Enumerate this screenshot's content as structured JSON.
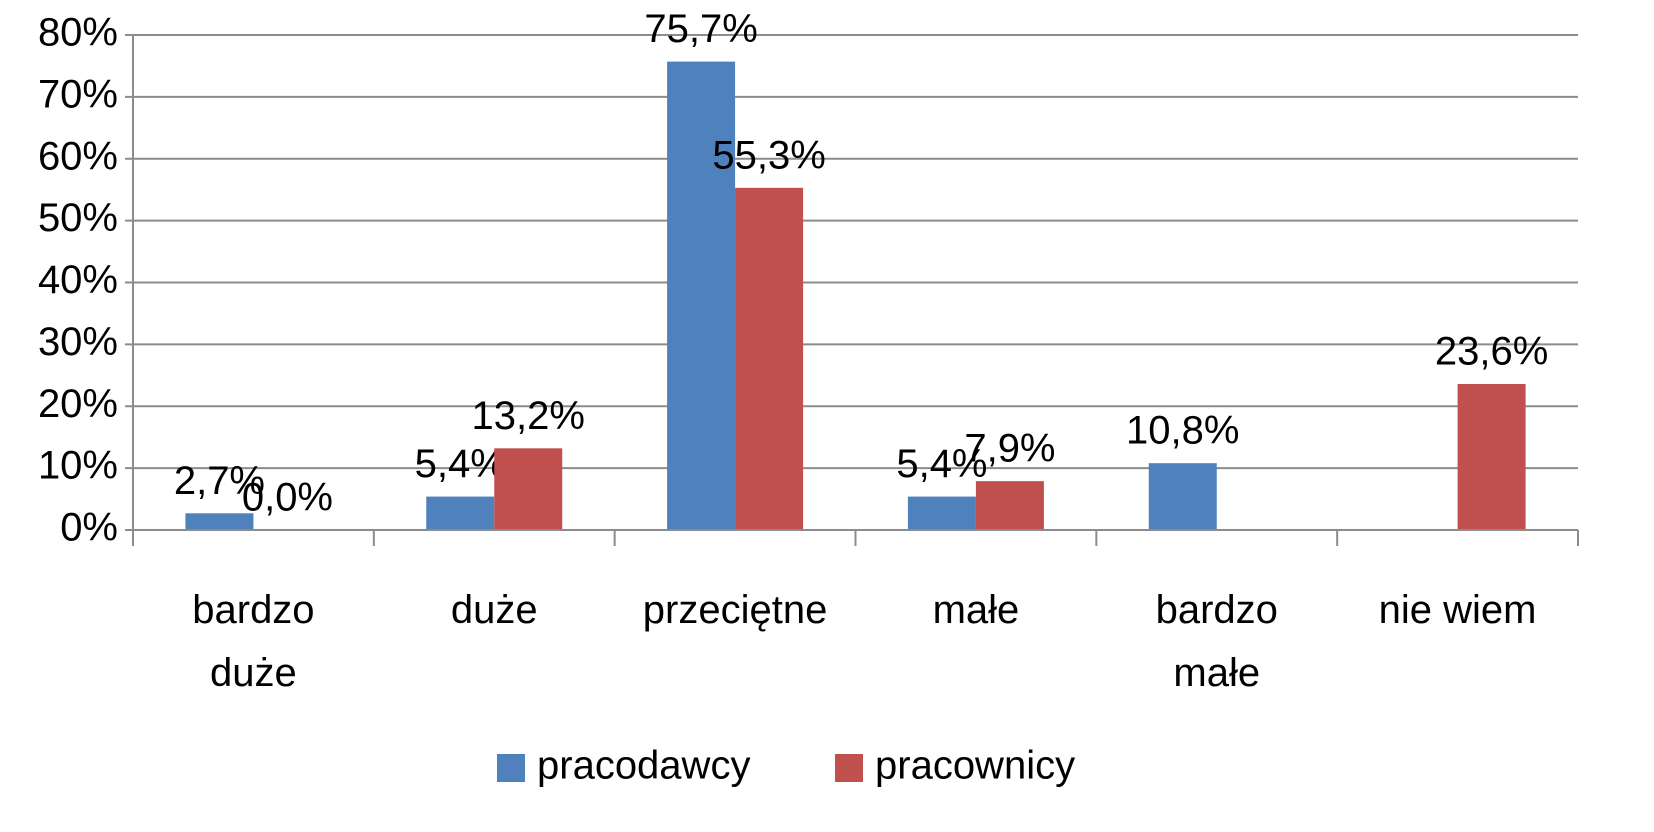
{
  "chart_data": {
    "type": "bar",
    "categories": [
      "bardzo\nduże",
      "duże",
      "przeciętne",
      "małe",
      "bardzo\nmałe",
      "nie wiem"
    ],
    "series": [
      {
        "name": "pracodawcy",
        "color": "#4f81bd",
        "values": [
          2.7,
          5.4,
          75.7,
          5.4,
          10.8,
          null
        ],
        "value_labels": [
          "2,7%",
          "5,4%",
          "75,7%",
          "5,4%",
          "10,8%",
          null
        ]
      },
      {
        "name": "pracownicy",
        "color": "#c0504d",
        "values": [
          0.0,
          13.2,
          55.3,
          7.9,
          null,
          23.6
        ],
        "value_labels": [
          "0,0%",
          "13,2%",
          "55,3%",
          "7,9%",
          null,
          "23,6%"
        ]
      }
    ],
    "ylim": [
      0,
      80
    ],
    "yticks": [
      {
        "value": 0,
        "label": "0%"
      },
      {
        "value": 10,
        "label": "10%"
      },
      {
        "value": 20,
        "label": "20%"
      },
      {
        "value": 30,
        "label": "30%"
      },
      {
        "value": 40,
        "label": "40%"
      },
      {
        "value": 50,
        "label": "50%"
      },
      {
        "value": 60,
        "label": "60%"
      },
      {
        "value": 70,
        "label": "70%"
      },
      {
        "value": 80,
        "label": "80%"
      }
    ],
    "grid": true,
    "legend": "bottom"
  }
}
